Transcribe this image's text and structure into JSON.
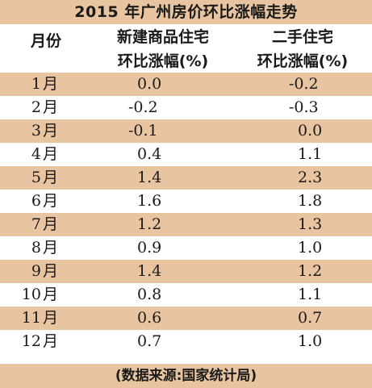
{
  "title": "2015 年广州房价环比涨幅走势",
  "header": {
    "month": "月份",
    "col1_line1": "新建商品住宅",
    "col1_line2": "环比涨幅(%)",
    "col2_line1": "二手住宅",
    "col2_line2": "环比涨幅(%)"
  },
  "source": "(数据来源:国家统计局)",
  "colors": {
    "band": "#e8c5a0",
    "text": "#1a1a1a"
  },
  "chart_data": {
    "type": "table",
    "title": "2015 年广州房价环比涨幅走势",
    "columns": [
      "月份",
      "新建商品住宅环比涨幅(%)",
      "二手住宅环比涨幅(%)"
    ],
    "rows": [
      {
        "month": "1",
        "unit": "月",
        "new": "0.0",
        "second": "-0.2"
      },
      {
        "month": "2",
        "unit": "月",
        "new": "-0.2",
        "second": "-0.3"
      },
      {
        "month": "3",
        "unit": "月",
        "new": "-0.1",
        "second": "0.0"
      },
      {
        "month": "4",
        "unit": "月",
        "new": "0.4",
        "second": "1.1"
      },
      {
        "month": "5",
        "unit": "月",
        "new": "1.4",
        "second": "2.3"
      },
      {
        "month": "6",
        "unit": "月",
        "new": "1.6",
        "second": "1.8"
      },
      {
        "month": "7",
        "unit": "月",
        "new": "1.2",
        "second": "1.3"
      },
      {
        "month": "8",
        "unit": "月",
        "new": "0.9",
        "second": "1.0"
      },
      {
        "month": "9",
        "unit": "月",
        "new": "1.4",
        "second": "1.2"
      },
      {
        "month": "10",
        "unit": "月",
        "new": "0.8",
        "second": "1.1"
      },
      {
        "month": "11",
        "unit": "月",
        "new": "0.6",
        "second": "0.7"
      },
      {
        "month": "12",
        "unit": "月",
        "new": "0.7",
        "second": "1.0"
      }
    ],
    "source": "(数据来源:国家统计局)"
  }
}
